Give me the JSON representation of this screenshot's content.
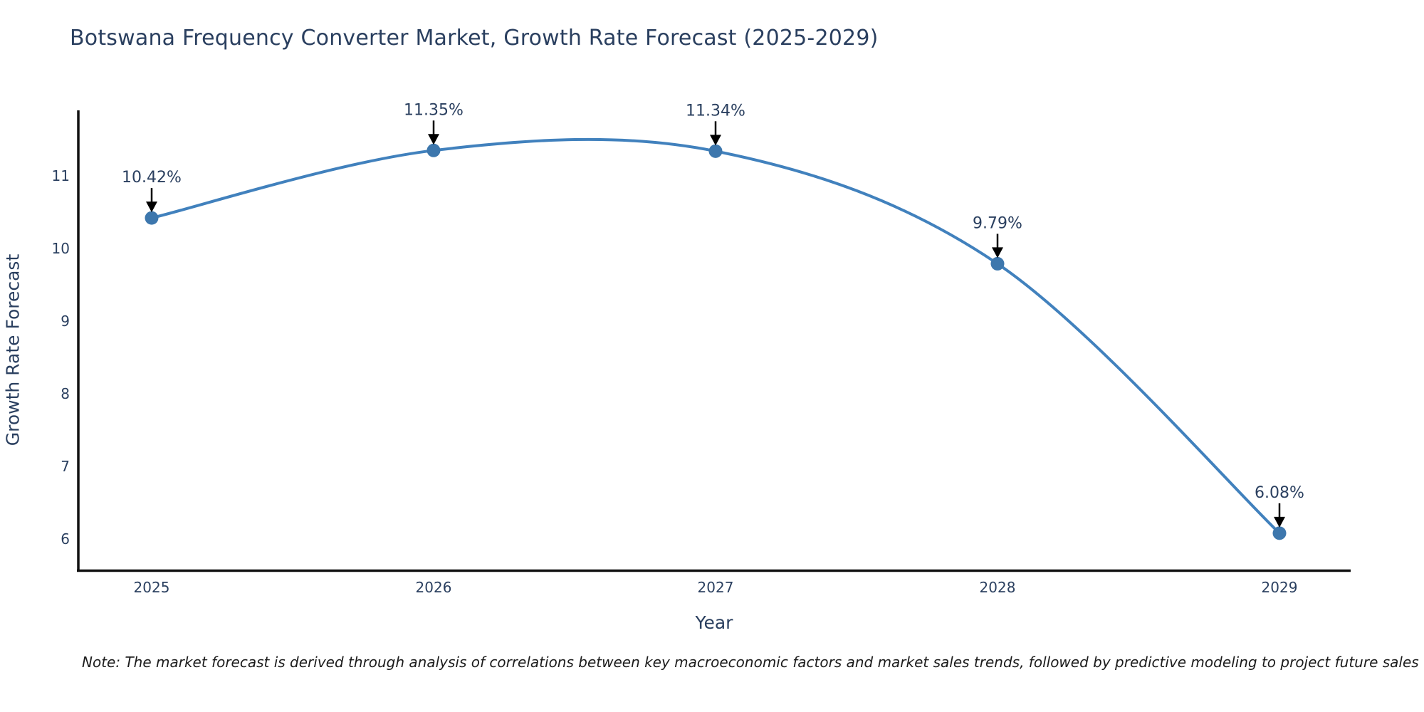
{
  "note": "Note: The market forecast is derived through analysis of correlations between key macroeconomic factors and market sales trends, followed by predictive modeling to project future sales",
  "chart_data": {
    "type": "line",
    "title": "Botswana Frequency Converter Market, Growth Rate Forecast (2025-2029)",
    "xlabel": "Year",
    "ylabel": "Growth Rate Forecast",
    "x": [
      2025,
      2026,
      2027,
      2028,
      2029
    ],
    "series": [
      {
        "name": "Growth Rate Forecast",
        "values": [
          10.42,
          11.35,
          11.34,
          9.79,
          6.08
        ]
      }
    ],
    "point_labels": [
      "10.42%",
      "11.35%",
      "11.34%",
      "9.79%",
      "6.08%"
    ],
    "yticks": [
      6,
      7,
      8,
      9,
      10,
      11
    ],
    "ylim": [
      5.6,
      11.9
    ],
    "grid": false,
    "legend_position": "none",
    "line_shape": "spline",
    "colors": {
      "line": "#4181bd",
      "marker": "#3d77ad",
      "axis": "#111111",
      "tick_label": "#2a3f5f",
      "annotation_text": "#2a3f5f",
      "arrow": "#000000",
      "title": "#2a3f5f"
    }
  }
}
